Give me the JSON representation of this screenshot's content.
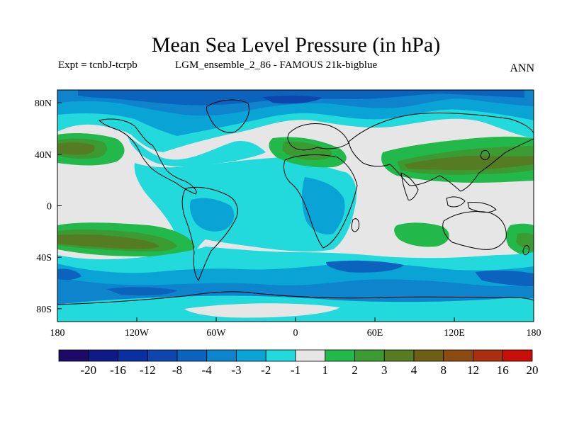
{
  "header": {
    "title": "Mean Sea Level Pressure (in hPa)",
    "experiment": "Expt = tcnbJ-tcrpb",
    "run_name": "LGM_ensemble_2_86 - FAMOUS 21k-bigblue",
    "season": "ANN"
  },
  "map": {
    "projection": "cylindrical equidistant",
    "extent": {
      "lon": [
        -180,
        180
      ],
      "lat": [
        -90,
        90
      ]
    },
    "lon_ticks": [
      {
        "value": -180,
        "label": "180"
      },
      {
        "value": -120,
        "label": "120W"
      },
      {
        "value": -60,
        "label": "60W"
      },
      {
        "value": 0,
        "label": "0"
      },
      {
        "value": 60,
        "label": "60E"
      },
      {
        "value": 120,
        "label": "120E"
      },
      {
        "value": 180,
        "label": "180"
      }
    ],
    "lat_ticks": [
      {
        "value": 80,
        "label": "80N"
      },
      {
        "value": 40,
        "label": "40N"
      },
      {
        "value": 0,
        "label": "0"
      },
      {
        "value": -40,
        "label": "40S"
      },
      {
        "value": -80,
        "label": "80S"
      }
    ],
    "background_color": "#e6e6e6",
    "coastline_color": "#000000"
  },
  "colorbar": {
    "labels": [
      "-20",
      "-16",
      "-12",
      "-8",
      "-4",
      "-3",
      "-2",
      "-1",
      "1",
      "2",
      "3",
      "4",
      "8",
      "12",
      "16",
      "20"
    ],
    "colors": [
      "#1c0a66",
      "#0e1a86",
      "#0a2fa0",
      "#0d47ae",
      "#0c63be",
      "#0d84cc",
      "#0aa3d6",
      "#22d9dc",
      "#e6e6e6",
      "#23b94a",
      "#3c9a32",
      "#557c22",
      "#6e5e16",
      "#8a4a12",
      "#a8300e",
      "#c80e08"
    ]
  }
}
